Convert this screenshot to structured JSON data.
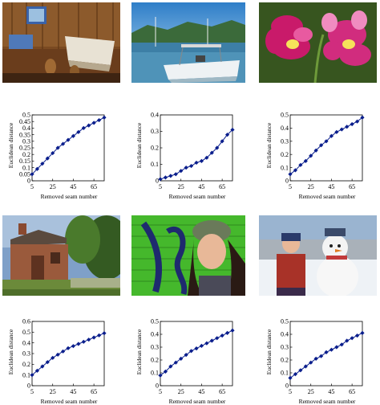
{
  "chart_data": [
    {
      "type": "line",
      "xlabel": "Removed seam number",
      "ylabel": "Euclidean  distance",
      "xticks": [
        5,
        25,
        45,
        65
      ],
      "xlim": [
        5,
        75
      ],
      "ylim": [
        0,
        0.5
      ],
      "yticks": [
        "0",
        "0.05",
        "0.1",
        "0.15",
        "0.2",
        "0.25",
        "0.3",
        "0.35",
        "0.4",
        "0.45",
        "0.5"
      ],
      "x": [
        5,
        10,
        15,
        20,
        25,
        30,
        35,
        40,
        45,
        50,
        55,
        60,
        65,
        70,
        75
      ],
      "y": [
        0.05,
        0.09,
        0.13,
        0.17,
        0.21,
        0.25,
        0.28,
        0.31,
        0.34,
        0.37,
        0.4,
        0.42,
        0.44,
        0.46,
        0.48
      ],
      "color": "#0a1e8c"
    },
    {
      "type": "line",
      "xlabel": "Removed seam number",
      "ylabel": "Euclidean  distance",
      "xticks": [
        5,
        25,
        45,
        65
      ],
      "xlim": [
        5,
        75
      ],
      "ylim": [
        0,
        0.4
      ],
      "yticks": [
        "0",
        "0.1",
        "0.2",
        "0.3",
        "0.4"
      ],
      "x": [
        5,
        10,
        15,
        20,
        25,
        30,
        35,
        40,
        45,
        50,
        55,
        60,
        65,
        70,
        75
      ],
      "y": [
        0.01,
        0.02,
        0.03,
        0.04,
        0.06,
        0.08,
        0.09,
        0.11,
        0.12,
        0.14,
        0.17,
        0.2,
        0.24,
        0.28,
        0.31
      ],
      "color": "#0a1e8c"
    },
    {
      "type": "line",
      "xlabel": "Removed seam number",
      "ylabel": "Euclidean  distance",
      "xticks": [
        5,
        25,
        45,
        65
      ],
      "xlim": [
        5,
        75
      ],
      "ylim": [
        0,
        0.5
      ],
      "yticks": [
        "0",
        "0.1",
        "0.2",
        "0.3",
        "0.4",
        "0.5"
      ],
      "x": [
        5,
        10,
        15,
        20,
        25,
        30,
        35,
        40,
        45,
        50,
        55,
        60,
        65,
        70,
        75
      ],
      "y": [
        0.05,
        0.08,
        0.12,
        0.15,
        0.19,
        0.23,
        0.27,
        0.3,
        0.34,
        0.37,
        0.39,
        0.41,
        0.43,
        0.45,
        0.48
      ],
      "color": "#0a1e8c"
    },
    {
      "type": "line",
      "xlabel": "Removed seam number",
      "ylabel": "Euclidean  distance",
      "xticks": [
        5,
        25,
        45,
        65
      ],
      "xlim": [
        5,
        75
      ],
      "ylim": [
        0,
        0.6
      ],
      "yticks": [
        "0",
        "0.1",
        "0.2",
        "0.3",
        "0.4",
        "0.5",
        "0.6"
      ],
      "x": [
        5,
        10,
        15,
        20,
        25,
        30,
        35,
        40,
        45,
        50,
        55,
        60,
        65,
        70,
        75
      ],
      "y": [
        0.1,
        0.14,
        0.18,
        0.22,
        0.26,
        0.29,
        0.32,
        0.35,
        0.37,
        0.39,
        0.41,
        0.43,
        0.45,
        0.47,
        0.49
      ],
      "color": "#0a1e8c"
    },
    {
      "type": "line",
      "xlabel": "Removed seam number",
      "ylabel": "Euclidean  distance",
      "xticks": [
        5,
        25,
        45,
        65
      ],
      "xlim": [
        5,
        75
      ],
      "ylim": [
        0,
        0.5
      ],
      "yticks": [
        "0",
        "0.1",
        "0.2",
        "0.3",
        "0.4",
        "0.5"
      ],
      "x": [
        5,
        10,
        15,
        20,
        25,
        30,
        35,
        40,
        45,
        50,
        55,
        60,
        65,
        70,
        75
      ],
      "y": [
        0.08,
        0.11,
        0.15,
        0.18,
        0.21,
        0.24,
        0.27,
        0.29,
        0.31,
        0.33,
        0.35,
        0.37,
        0.39,
        0.41,
        0.43
      ],
      "color": "#0a1e8c"
    },
    {
      "type": "line",
      "xlabel": "Removed seam number",
      "ylabel": "Euclidean  distance",
      "xticks": [
        5,
        25,
        45,
        65
      ],
      "xlim": [
        5,
        75
      ],
      "ylim": [
        0,
        0.5
      ],
      "yticks": [
        "0",
        "0.1",
        "0.2",
        "0.3",
        "0.4",
        "0.5"
      ],
      "x": [
        5,
        10,
        15,
        20,
        25,
        30,
        35,
        40,
        45,
        50,
        55,
        60,
        65,
        70,
        75
      ],
      "y": [
        0.06,
        0.09,
        0.12,
        0.15,
        0.18,
        0.21,
        0.23,
        0.26,
        0.28,
        0.3,
        0.32,
        0.35,
        0.37,
        0.39,
        0.41
      ],
      "color": "#0a1e8c"
    }
  ]
}
